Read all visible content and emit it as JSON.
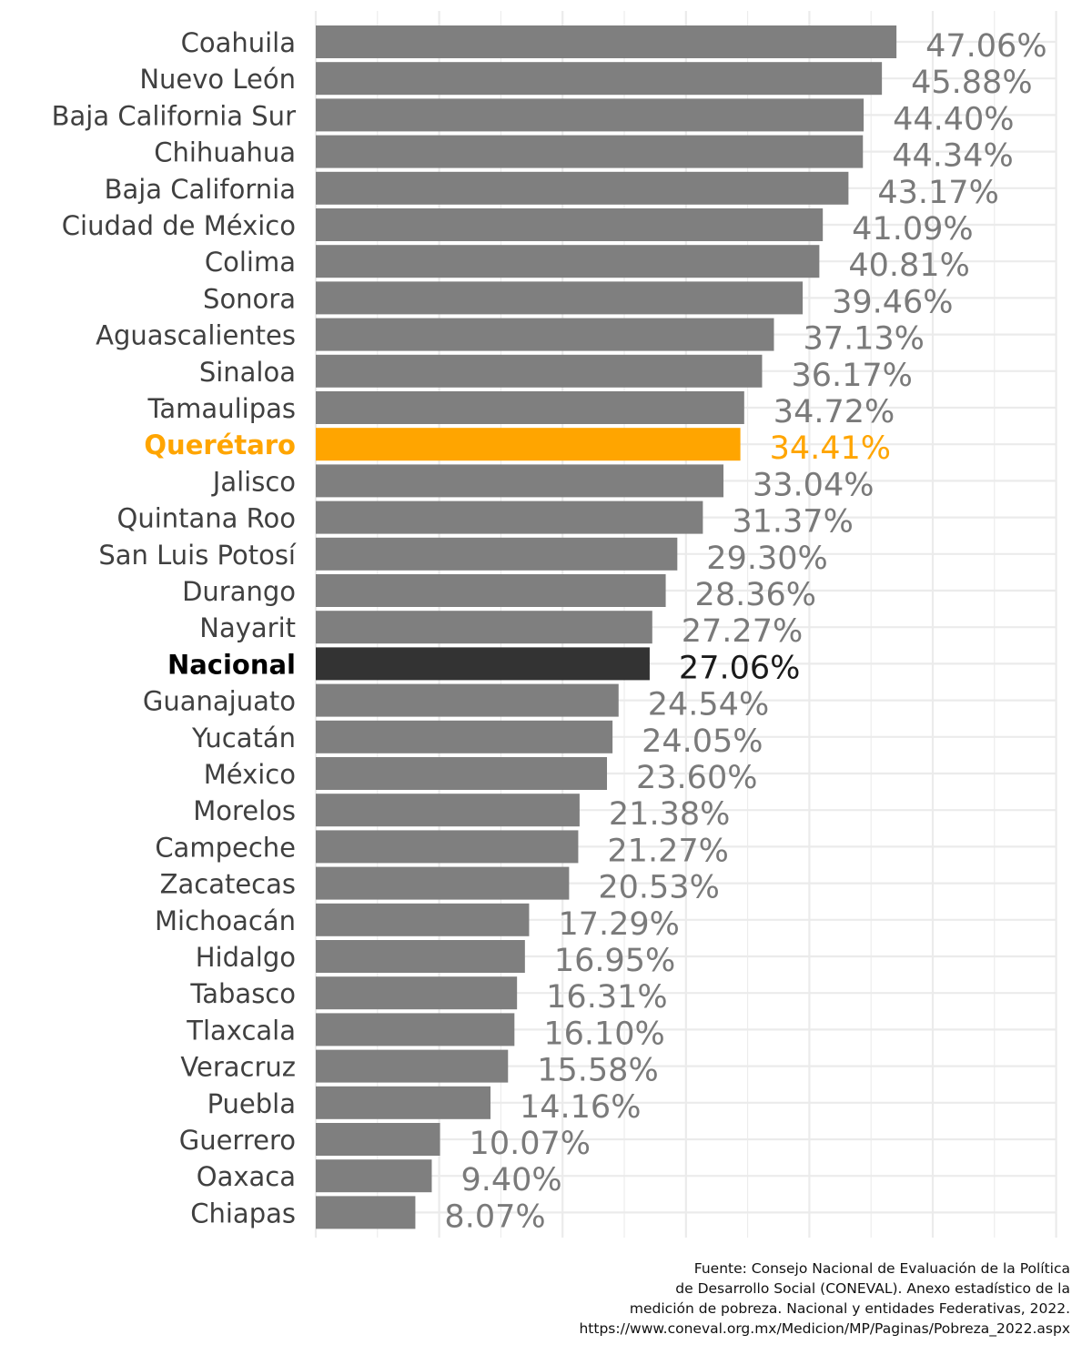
{
  "chart_data": {
    "type": "bar",
    "orientation": "horizontal",
    "title": "",
    "xlabel": "",
    "ylabel": "",
    "xlim": [
      0,
      60
    ],
    "grid": true,
    "legend": "none",
    "value_format": "percent, 2 decimals",
    "categories": [
      "Coahuila",
      "Nuevo León",
      "Baja California Sur",
      "Chihuahua",
      "Baja California",
      "Ciudad de México",
      "Colima",
      "Sonora",
      "Aguascalientes",
      "Sinaloa",
      "Tamaulipas",
      "Querétaro",
      "Jalisco",
      "Quintana Roo",
      "San Luis Potosí",
      "Durango",
      "Nayarit",
      "Nacional",
      "Guanajuato",
      "Yucatán",
      "México",
      "Morelos",
      "Campeche",
      "Zacatecas",
      "Michoacán",
      "Hidalgo",
      "Tabasco",
      "Tlaxcala",
      "Veracruz",
      "Puebla",
      "Guerrero",
      "Oaxaca",
      "Chiapas"
    ],
    "values": [
      47.06,
      45.88,
      44.4,
      44.34,
      43.17,
      41.09,
      40.81,
      39.46,
      37.13,
      36.17,
      34.72,
      34.41,
      33.04,
      31.37,
      29.3,
      28.36,
      27.27,
      27.06,
      24.54,
      24.05,
      23.6,
      21.38,
      21.27,
      20.53,
      17.29,
      16.95,
      16.31,
      16.1,
      15.58,
      14.16,
      10.07,
      9.4,
      8.07
    ],
    "data_labels": [
      "47.06%",
      "45.88%",
      "44.40%",
      "44.34%",
      "43.17%",
      "41.09%",
      "40.81%",
      "39.46%",
      "37.13%",
      "36.17%",
      "34.72%",
      "34.41%",
      "33.04%",
      "31.37%",
      "29.30%",
      "28.36%",
      "27.27%",
      "27.06%",
      "24.54%",
      "24.05%",
      "23.60%",
      "21.38%",
      "21.27%",
      "20.53%",
      "17.29%",
      "16.95%",
      "16.31%",
      "16.10%",
      "15.58%",
      "14.16%",
      "10.07%",
      "9.40%",
      "8.07%"
    ],
    "highlights": {
      "Querétaro": "highlight",
      "Nacional": "national"
    },
    "colors": {
      "default_bar": "#7f7f7f",
      "default_text": "#7a7a7a",
      "category_text": "#404040",
      "highlight": "#ffa500",
      "national_bar": "#333333",
      "national_text": "#000000",
      "national_value_text": "#1a1a1a",
      "grid": "#ebebeb"
    }
  },
  "source": {
    "lines": [
      "Fuente: Consejo Nacional de Evaluación de la Política",
      "de Desarrollo Social (CONEVAL). Anexo estadístico de la",
      "medición de pobreza. Nacional y entidades Federativas, 2022.",
      "https://www.coneval.org.mx/Medicion/MP/Paginas/Pobreza_2022.aspx"
    ]
  }
}
